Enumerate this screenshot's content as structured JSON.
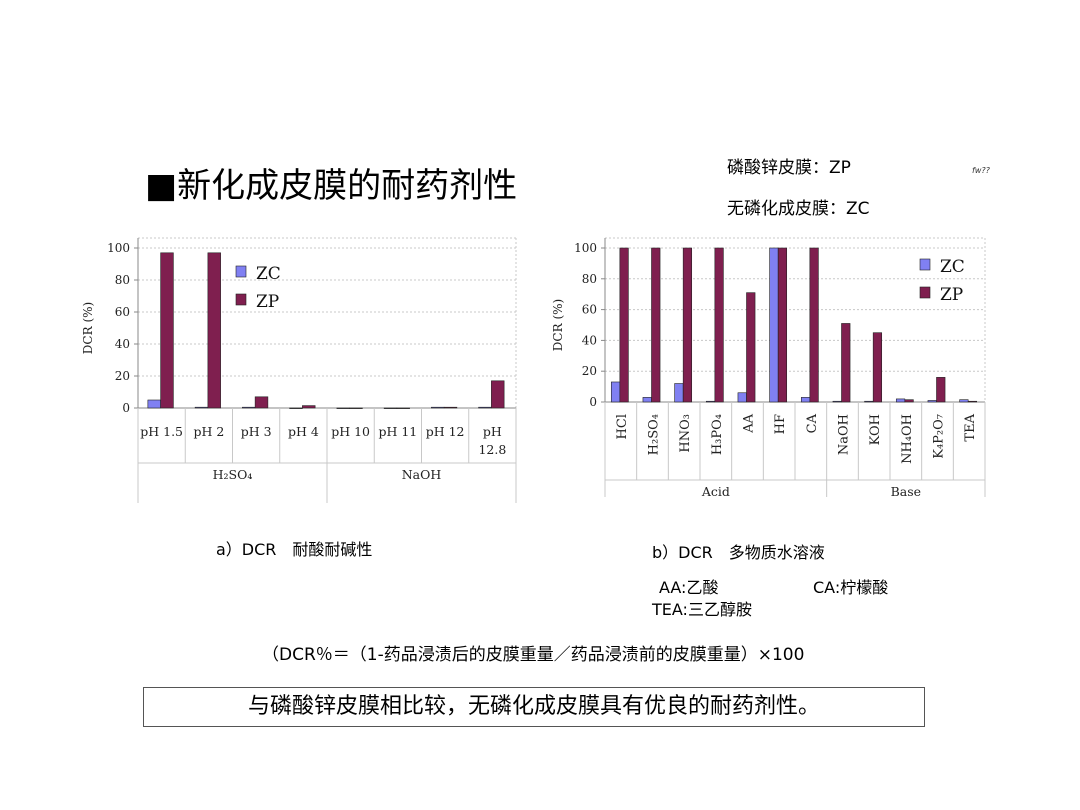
{
  "page": {
    "title": "■新化成皮膜的耐药剂性",
    "legend_note_1": "磷酸锌皮膜：ZP",
    "legend_note_2": "无磷化成皮膜：ZC",
    "corner_mark": "fw??",
    "caption_a": "a）DCR　耐酸耐碱性",
    "caption_b": "b）DCR　多物质水溶液",
    "abbr_aa": "AA:乙酸",
    "abbr_ca": "CA:柠檬酸",
    "abbr_tea": "TEA:三乙醇胺",
    "formula": "（DCR％＝（1-药品浸渍后的皮膜重量／药品浸渍前的皮膜重量）×100",
    "conclusion": "与磷酸锌皮膜相比较，无磷化成皮膜具有优良的耐药剂性。"
  },
  "colors": {
    "zc": "#8080f2",
    "zp": "#7f1f4f",
    "grid": "#c8c8c8",
    "axis": "#888888"
  },
  "chart_data": [
    {
      "type": "bar",
      "ylabel": "DCR (%)",
      "ylim": [
        0,
        100
      ],
      "yticks": [
        0,
        20,
        40,
        60,
        80,
        100
      ],
      "grid": true,
      "legend": "top-left",
      "categories": [
        "pH 1.5",
        "pH 2",
        "pH 3",
        "pH 4",
        "pH 10",
        "pH 11",
        "pH 12",
        "pH\n12.8"
      ],
      "groups": [
        {
          "label": "H₂SO₄",
          "start": 0,
          "end": 3
        },
        {
          "label": "NaOH",
          "start": 4,
          "end": 7
        }
      ],
      "series": [
        {
          "name": "ZC",
          "values": [
            5,
            0.5,
            0.5,
            0,
            0,
            0,
            0.5,
            0.5
          ]
        },
        {
          "name": "ZP",
          "values": [
            97,
            97,
            7,
            1.5,
            0,
            0,
            0.5,
            17
          ]
        }
      ]
    },
    {
      "type": "bar",
      "ylabel": "DCR (%)",
      "ylim": [
        0,
        100
      ],
      "yticks": [
        0,
        20,
        40,
        60,
        80,
        100
      ],
      "grid": true,
      "legend": "top-right",
      "categories": [
        "HCl",
        "H₂SO₄",
        "HNO₃",
        "H₃PO₄",
        "AA",
        "HF",
        "CA",
        "NaOH",
        "KOH",
        "NH₄OH",
        "K₄P₂O₇",
        "TEA"
      ],
      "groups": [
        {
          "label": "Acid",
          "start": 0,
          "end": 6
        },
        {
          "label": "Base",
          "start": 7,
          "end": 11
        }
      ],
      "series": [
        {
          "name": "ZC",
          "values": [
            13,
            3,
            12,
            0.5,
            6,
            100,
            3,
            0.5,
            0.5,
            2,
            1,
            1.5
          ]
        },
        {
          "name": "ZP",
          "values": [
            100,
            100,
            100,
            100,
            71,
            100,
            100,
            51,
            45,
            1.5,
            16,
            0.5
          ]
        }
      ]
    }
  ]
}
